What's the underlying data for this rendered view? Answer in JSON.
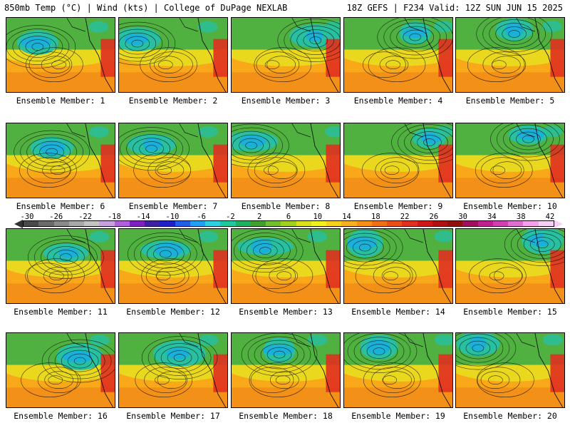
{
  "header": {
    "left": "850mb Temp (°C) | Wind (kts) | College of DuPage NEXLAB",
    "right": "18Z GEFS | F234 Valid: 12Z SUN JUN 15 2025"
  },
  "members": [
    "Ensemble Member: 1",
    "Ensemble Member: 2",
    "Ensemble Member: 3",
    "Ensemble Member: 4",
    "Ensemble Member: 5",
    "Ensemble Member: 6",
    "Ensemble Member: 7",
    "Ensemble Member: 8",
    "Ensemble Member: 9",
    "Ensemble Member: 10",
    "Ensemble Member: 11",
    "Ensemble Member: 12",
    "Ensemble Member: 13",
    "Ensemble Member: 14",
    "Ensemble Member: 15",
    "Ensemble Member: 16",
    "Ensemble Member: 17",
    "Ensemble Member: 18",
    "Ensemble Member: 19",
    "Ensemble Member: 20"
  ],
  "colorbar": {
    "ticks": [
      "-30",
      "-26",
      "-22",
      "-18",
      "-14",
      "-10",
      "-6",
      "-2",
      "2",
      "6",
      "10",
      "14",
      "18",
      "22",
      "26",
      "30",
      "34",
      "38",
      "42"
    ],
    "colors": [
      "#4a4a4a",
      "#6a6a6a",
      "#8a8a8a",
      "#a8a8a8",
      "#c4c4c4",
      "#c8a0e0",
      "#b060d8",
      "#8020c0",
      "#4020a0",
      "#2020c8",
      "#2060e8",
      "#20a0f0",
      "#30d0e0",
      "#20c8a0",
      "#20b060",
      "#40a030",
      "#70c030",
      "#a0d020",
      "#d8e020",
      "#f0f020",
      "#f8d020",
      "#f8b020",
      "#f89018",
      "#f07018",
      "#e85018",
      "#e03020",
      "#d01818",
      "#b01010",
      "#901010",
      "#a01060",
      "#c02090",
      "#d040b0",
      "#e070d0",
      "#f5a0e8",
      "#f5d0f5"
    ]
  },
  "palette": {
    "cold": "#1ab0d8",
    "cool": "#28c0a0",
    "mild": "#50b040",
    "warm": "#e8e020",
    "hot": "#f8a818",
    "hotter": "#f08018",
    "hottest": "#e03020"
  }
}
